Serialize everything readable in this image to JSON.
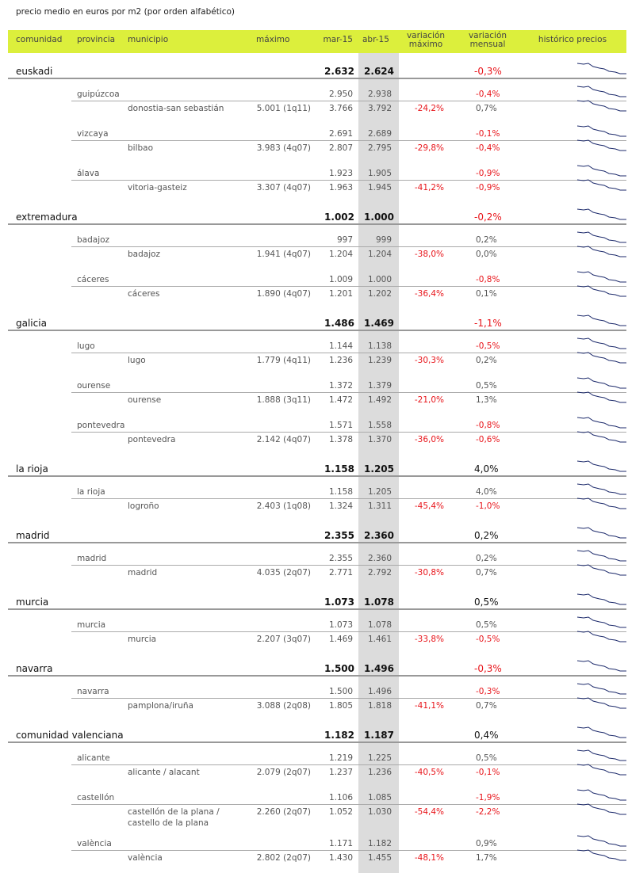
{
  "title": "precio medio en euros por m2 (por orden alfabético)",
  "columns": [
    "comunidad",
    "provincia",
    "municipio",
    "máximo",
    "mar-15",
    "abr-15",
    "variación máximo",
    "variación mensual",
    "histórico precios"
  ],
  "regions": [
    {
      "name": "euskadi",
      "mar": "2.632",
      "abr": "2.624",
      "var_mensual": "-0,3%",
      "provinces": [
        {
          "name": "guipúzcoa",
          "mar": "2.950",
          "abr": "2.938",
          "var_mensual": "-0,4%",
          "municipalities": [
            {
              "name": "donostia-san sebastián",
              "maximo": "5.001 (1q11)",
              "mar": "3.766",
              "abr": "3.792",
              "var_maximo": "-24,2%",
              "var_mensual": "0,7%"
            }
          ]
        },
        {
          "name": "vizcaya",
          "mar": "2.691",
          "abr": "2.689",
          "var_mensual": "-0,1%",
          "municipalities": [
            {
              "name": "bilbao",
              "maximo": "3.983 (4q07)",
              "mar": "2.807",
              "abr": "2.795",
              "var_maximo": "-29,8%",
              "var_mensual": "-0,4%"
            }
          ]
        },
        {
          "name": "álava",
          "mar": "1.923",
          "abr": "1.905",
          "var_mensual": "-0,9%",
          "municipalities": [
            {
              "name": "vitoria-gasteiz",
              "maximo": "3.307 (4q07)",
              "mar": "1.963",
              "abr": "1.945",
              "var_maximo": "-41,2%",
              "var_mensual": "-0,9%"
            }
          ]
        }
      ]
    },
    {
      "name": "extremadura",
      "mar": "1.002",
      "abr": "1.000",
      "var_mensual": "-0,2%",
      "provinces": [
        {
          "name": "badajoz",
          "mar": "997",
          "abr": "999",
          "var_mensual": "0,2%",
          "municipalities": [
            {
              "name": "badajoz",
              "maximo": "1.941 (4q07)",
              "mar": "1.204",
              "abr": "1.204",
              "var_maximo": "-38,0%",
              "var_mensual": "0,0%"
            }
          ]
        },
        {
          "name": "cáceres",
          "mar": "1.009",
          "abr": "1.000",
          "var_mensual": "-0,8%",
          "municipalities": [
            {
              "name": "cáceres",
              "maximo": "1.890 (4q07)",
              "mar": "1.201",
              "abr": "1.202",
              "var_maximo": "-36,4%",
              "var_mensual": "0,1%"
            }
          ]
        }
      ]
    },
    {
      "name": "galicia",
      "mar": "1.486",
      "abr": "1.469",
      "var_mensual": "-1,1%",
      "provinces": [
        {
          "name": "lugo",
          "mar": "1.144",
          "abr": "1.138",
          "var_mensual": "-0,5%",
          "municipalities": [
            {
              "name": "lugo",
              "maximo": "1.779 (4q11)",
              "mar": "1.236",
              "abr": "1.239",
              "var_maximo": "-30,3%",
              "var_mensual": "0,2%"
            }
          ]
        },
        {
          "name": "ourense",
          "mar": "1.372",
          "abr": "1.379",
          "var_mensual": "0,5%",
          "municipalities": [
            {
              "name": "ourense",
              "maximo": "1.888 (3q11)",
              "mar": "1.472",
              "abr": "1.492",
              "var_maximo": "-21,0%",
              "var_mensual": "1,3%"
            }
          ]
        },
        {
          "name": "pontevedra",
          "mar": "1.571",
          "abr": "1.558",
          "var_mensual": "-0,8%",
          "municipalities": [
            {
              "name": "pontevedra",
              "maximo": "2.142 (4q07)",
              "mar": "1.378",
              "abr": "1.370",
              "var_maximo": "-36,0%",
              "var_mensual": "-0,6%"
            }
          ]
        }
      ]
    },
    {
      "name": "la rioja",
      "mar": "1.158",
      "abr": "1.205",
      "var_mensual": "4,0%",
      "provinces": [
        {
          "name": "la rioja",
          "mar": "1.158",
          "abr": "1.205",
          "var_mensual": "4,0%",
          "municipalities": [
            {
              "name": "logroño",
              "maximo": "2.403 (1q08)",
              "mar": "1.324",
              "abr": "1.311",
              "var_maximo": "-45,4%",
              "var_mensual": "-1,0%"
            }
          ]
        }
      ]
    },
    {
      "name": "madrid",
      "mar": "2.355",
      "abr": "2.360",
      "var_mensual": "0,2%",
      "provinces": [
        {
          "name": "madrid",
          "mar": "2.355",
          "abr": "2.360",
          "var_mensual": "0,2%",
          "municipalities": [
            {
              "name": "madrid",
              "maximo": "4.035 (2q07)",
              "mar": "2.771",
              "abr": "2.792",
              "var_maximo": "-30,8%",
              "var_mensual": "0,7%"
            }
          ]
        }
      ]
    },
    {
      "name": "murcia",
      "mar": "1.073",
      "abr": "1.078",
      "var_mensual": "0,5%",
      "provinces": [
        {
          "name": "murcia",
          "mar": "1.073",
          "abr": "1.078",
          "var_mensual": "0,5%",
          "municipalities": [
            {
              "name": "murcia",
              "maximo": "2.207 (3q07)",
              "mar": "1.469",
              "abr": "1.461",
              "var_maximo": "-33,8%",
              "var_mensual": "-0,5%"
            }
          ]
        }
      ]
    },
    {
      "name": "navarra",
      "mar": "1.500",
      "abr": "1.496",
      "var_mensual": "-0,3%",
      "provinces": [
        {
          "name": "navarra",
          "mar": "1.500",
          "abr": "1.496",
          "var_mensual": "-0,3%",
          "municipalities": [
            {
              "name": "pamplona/iruña",
              "maximo": "3.088 (2q08)",
              "mar": "1.805",
              "abr": "1.818",
              "var_maximo": "-41,1%",
              "var_mensual": "0,7%"
            }
          ]
        }
      ]
    },
    {
      "name": "comunidad valenciana",
      "mar": "1.182",
      "abr": "1.187",
      "var_mensual": "0,4%",
      "provinces": [
        {
          "name": "alicante",
          "mar": "1.219",
          "abr": "1.225",
          "var_mensual": "0,5%",
          "municipalities": [
            {
              "name": "alicante / alacant",
              "maximo": "2.079 (2q07)",
              "mar": "1.237",
              "abr": "1.236",
              "var_maximo": "-40,5%",
              "var_mensual": "-0,1%"
            }
          ]
        },
        {
          "name": "castellón",
          "mar": "1.106",
          "abr": "1.085",
          "var_mensual": "-1,9%",
          "municipalities": [
            {
              "name": "castellón de la plana / castello de la plana",
              "maximo": "2.260 (2q07)",
              "mar": "1.052",
              "abr": "1.030",
              "var_maximo": "-54,4%",
              "var_mensual": "-2,2%"
            }
          ]
        },
        {
          "name": "valència",
          "mar": "1.171",
          "abr": "1.182",
          "var_mensual": "0,9%",
          "municipalities": [
            {
              "name": "valència",
              "maximo": "2.802 (2q07)",
              "mar": "1.430",
              "abr": "1.455",
              "var_maximo": "-48,1%",
              "var_mensual": "1,7%"
            }
          ]
        }
      ]
    }
  ]
}
